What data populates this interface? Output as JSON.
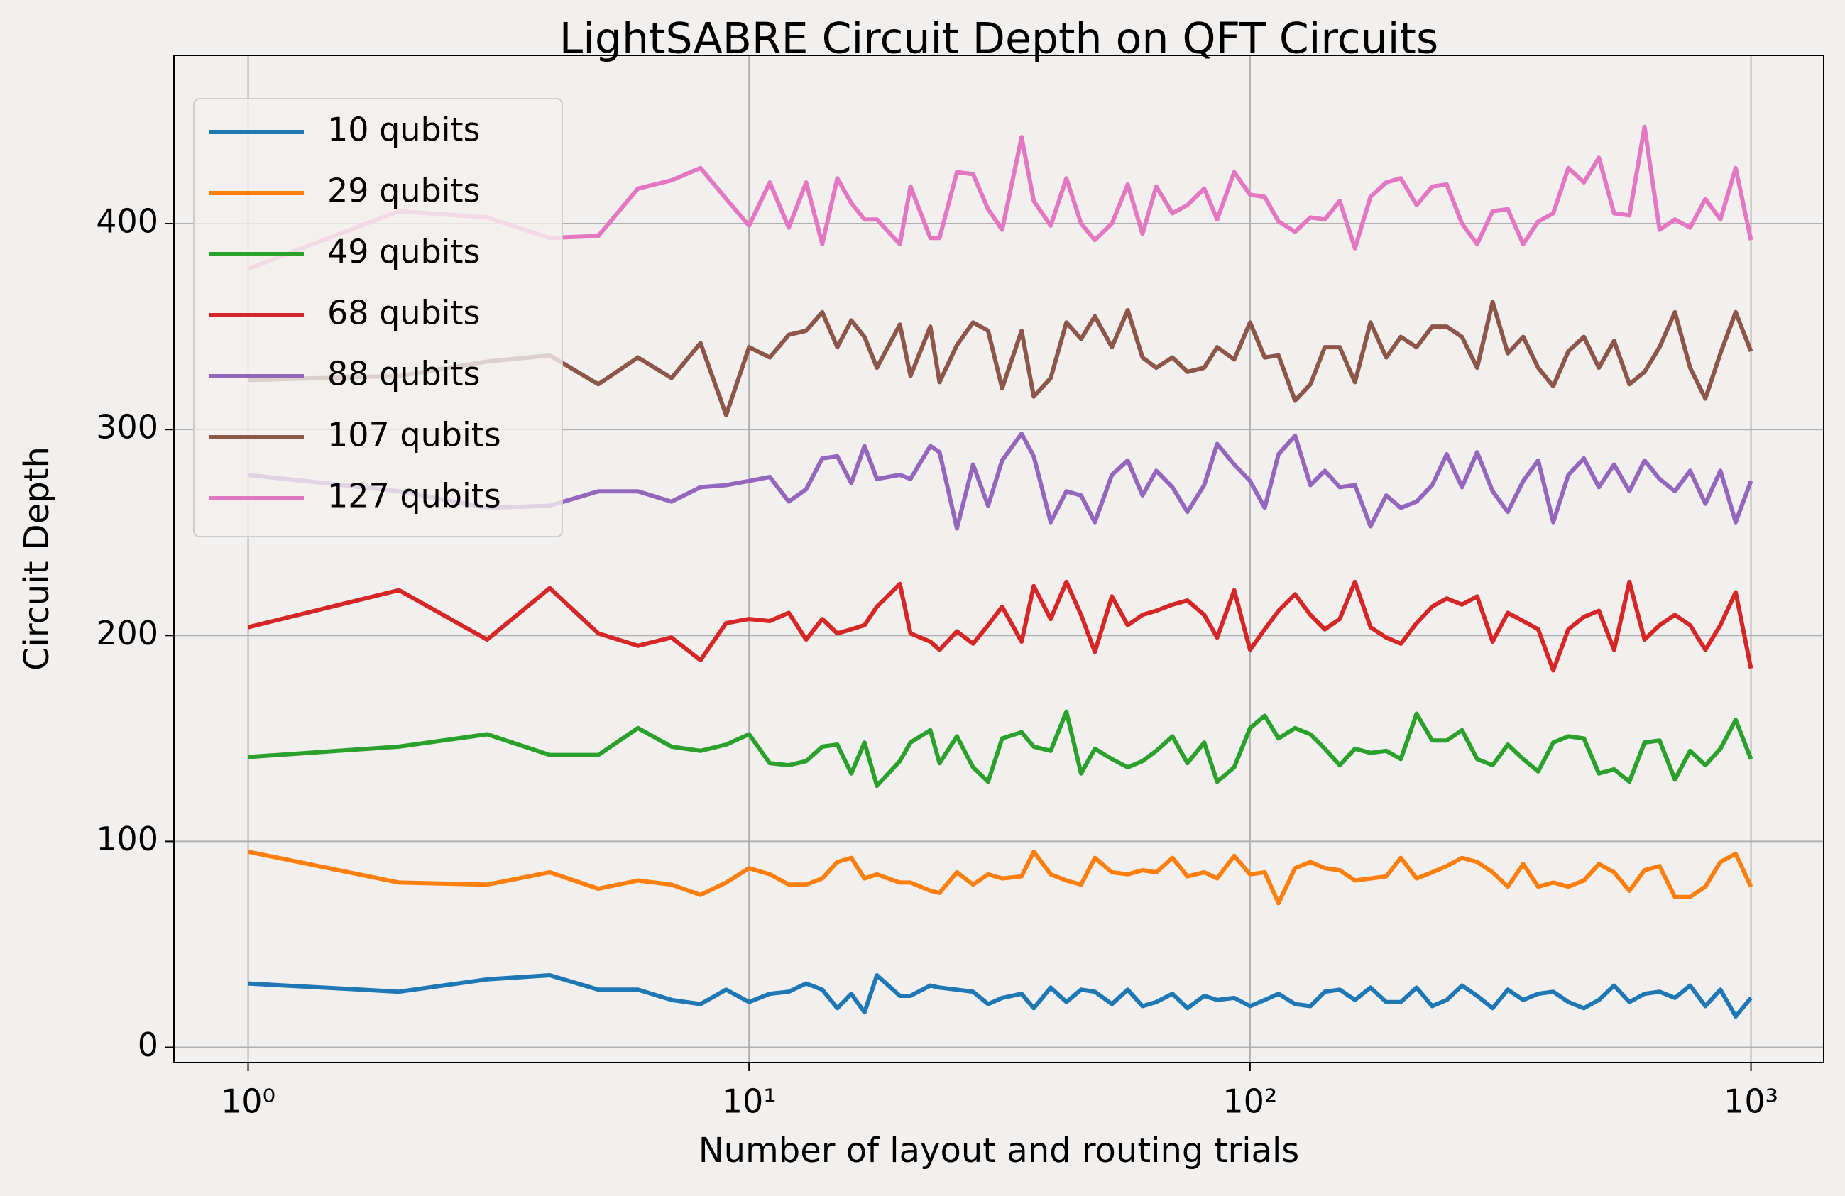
{
  "chart_data": {
    "type": "line",
    "title": "LightSABRE Circuit Depth on QFT Circuits",
    "x_label": "Number of layout and routing trials",
    "y_label": "Circuit Depth",
    "log_x": true,
    "grid": true,
    "legend_position": "upper-left",
    "x": [
      1,
      2,
      3,
      4,
      5,
      6,
      7,
      8,
      9,
      10,
      11,
      12,
      13,
      14,
      15,
      16,
      17,
      18,
      20,
      21,
      23,
      24,
      26,
      28,
      30,
      32,
      35,
      37,
      40,
      43,
      46,
      49,
      53,
      57,
      61,
      65,
      70,
      75,
      81,
      86,
      93,
      100,
      107,
      114,
      123,
      132,
      141,
      151,
      162,
      174,
      187,
      200,
      215,
      231,
      247,
      265,
      284,
      305,
      327,
      351,
      376,
      403,
      432,
      464,
      497,
      533,
      572,
      613,
      657,
      705,
      756,
      811,
      869,
      932,
      1000
    ],
    "xlim": [
      0.711,
      1397
    ],
    "xticks": [
      {
        "value": 1,
        "label": "10⁰"
      },
      {
        "value": 10,
        "label": "10¹"
      },
      {
        "value": 100,
        "label": "10²"
      },
      {
        "value": 1000,
        "label": "10³"
      }
    ],
    "ylim": [
      -7.4,
      481.7
    ],
    "yticks": [
      0,
      100,
      200,
      300,
      400
    ],
    "series": [
      {
        "name": "10 qubits",
        "color": "#1f77b4",
        "values": [
          31,
          27,
          33,
          35,
          28,
          28,
          23,
          21,
          28,
          22,
          26,
          27,
          31,
          28,
          19,
          26,
          17,
          35,
          25,
          25,
          30,
          29,
          28,
          27,
          21,
          24,
          26,
          19,
          29,
          22,
          28,
          27,
          21,
          28,
          20,
          22,
          26,
          19,
          25,
          23,
          24,
          20,
          23,
          26,
          21,
          20,
          27,
          28,
          23,
          29,
          22,
          22,
          29,
          20,
          23,
          30,
          25,
          19,
          28,
          23,
          26,
          27,
          22,
          19,
          23,
          30,
          22,
          26,
          27,
          24,
          30,
          20,
          28,
          15,
          24
        ]
      },
      {
        "name": "29 qubits",
        "color": "#ff7f0e",
        "values": [
          95,
          80,
          79,
          85,
          77,
          81,
          79,
          74,
          80,
          87,
          84,
          79,
          79,
          82,
          90,
          92,
          82,
          84,
          80,
          80,
          76,
          75,
          85,
          79,
          84,
          82,
          83,
          95,
          84,
          81,
          79,
          92,
          85,
          84,
          86,
          85,
          92,
          83,
          85,
          82,
          93,
          84,
          85,
          70,
          87,
          90,
          87,
          86,
          81,
          82,
          83,
          92,
          82,
          85,
          88,
          92,
          90,
          85,
          78,
          89,
          78,
          80,
          78,
          81,
          89,
          85,
          76,
          86,
          88,
          73,
          73,
          78,
          90,
          94,
          78
        ]
      },
      {
        "name": "49 qubits",
        "color": "#2ca02c",
        "values": [
          141,
          146,
          152,
          142,
          142,
          155,
          146,
          144,
          147,
          152,
          138,
          137,
          139,
          146,
          147,
          133,
          148,
          127,
          139,
          148,
          154,
          138,
          151,
          136,
          129,
          150,
          153,
          146,
          144,
          163,
          133,
          145,
          140,
          136,
          139,
          144,
          151,
          138,
          148,
          129,
          136,
          155,
          161,
          150,
          155,
          152,
          145,
          137,
          145,
          143,
          144,
          140,
          162,
          149,
          149,
          154,
          140,
          137,
          147,
          140,
          134,
          148,
          151,
          150,
          133,
          135,
          129,
          148,
          149,
          130,
          144,
          137,
          145,
          159,
          140
        ]
      },
      {
        "name": "68 qubits",
        "color": "#d62728",
        "values": [
          204,
          222,
          198,
          223,
          201,
          195,
          199,
          188,
          206,
          208,
          207,
          211,
          198,
          208,
          201,
          203,
          205,
          214,
          225,
          201,
          197,
          193,
          202,
          196,
          205,
          214,
          197,
          224,
          208,
          226,
          210,
          192,
          219,
          205,
          210,
          212,
          215,
          217,
          210,
          199,
          222,
          193,
          203,
          212,
          220,
          210,
          203,
          208,
          226,
          204,
          199,
          196,
          206,
          214,
          218,
          215,
          219,
          197,
          211,
          207,
          203,
          183,
          203,
          209,
          212,
          193,
          226,
          198,
          205,
          210,
          205,
          193,
          205,
          221,
          184
        ]
      },
      {
        "name": "88 qubits",
        "color": "#9467bd",
        "values": [
          278,
          270,
          262,
          263,
          270,
          270,
          265,
          272,
          273,
          275,
          277,
          265,
          271,
          286,
          287,
          274,
          292,
          276,
          278,
          276,
          292,
          289,
          252,
          283,
          263,
          285,
          298,
          287,
          255,
          270,
          268,
          255,
          278,
          285,
          268,
          280,
          272,
          260,
          273,
          293,
          283,
          275,
          262,
          288,
          297,
          273,
          280,
          272,
          273,
          253,
          268,
          262,
          265,
          273,
          288,
          272,
          289,
          270,
          260,
          275,
          285,
          255,
          278,
          286,
          272,
          283,
          270,
          285,
          276,
          270,
          280,
          264,
          280,
          255,
          275
        ]
      },
      {
        "name": "107 qubits",
        "color": "#8c564b",
        "values": [
          324,
          326,
          333,
          336,
          322,
          335,
          325,
          342,
          307,
          340,
          335,
          346,
          348,
          357,
          340,
          353,
          345,
          330,
          351,
          326,
          350,
          323,
          341,
          352,
          348,
          320,
          348,
          316,
          325,
          352,
          344,
          355,
          340,
          358,
          335,
          330,
          335,
          328,
          330,
          340,
          334,
          352,
          335,
          336,
          314,
          322,
          340,
          340,
          323,
          352,
          335,
          345,
          340,
          350,
          350,
          345,
          330,
          362,
          337,
          345,
          330,
          321,
          338,
          345,
          330,
          343,
          322,
          328,
          340,
          357,
          330,
          315,
          337,
          357,
          338
        ]
      },
      {
        "name": "127 qubits",
        "color": "#e377c2",
        "values": [
          378,
          406,
          403,
          393,
          394,
          417,
          421,
          427,
          412,
          399,
          420,
          398,
          420,
          390,
          422,
          410,
          402,
          402,
          390,
          418,
          393,
          393,
          425,
          424,
          407,
          397,
          442,
          411,
          399,
          422,
          400,
          392,
          400,
          419,
          395,
          418,
          405,
          409,
          417,
          402,
          425,
          414,
          413,
          401,
          396,
          403,
          402,
          411,
          388,
          413,
          420,
          422,
          409,
          418,
          419,
          400,
          390,
          406,
          407,
          390,
          401,
          405,
          427,
          420,
          432,
          405,
          404,
          447,
          397,
          402,
          398,
          412,
          402,
          427,
          392
        ]
      }
    ]
  }
}
